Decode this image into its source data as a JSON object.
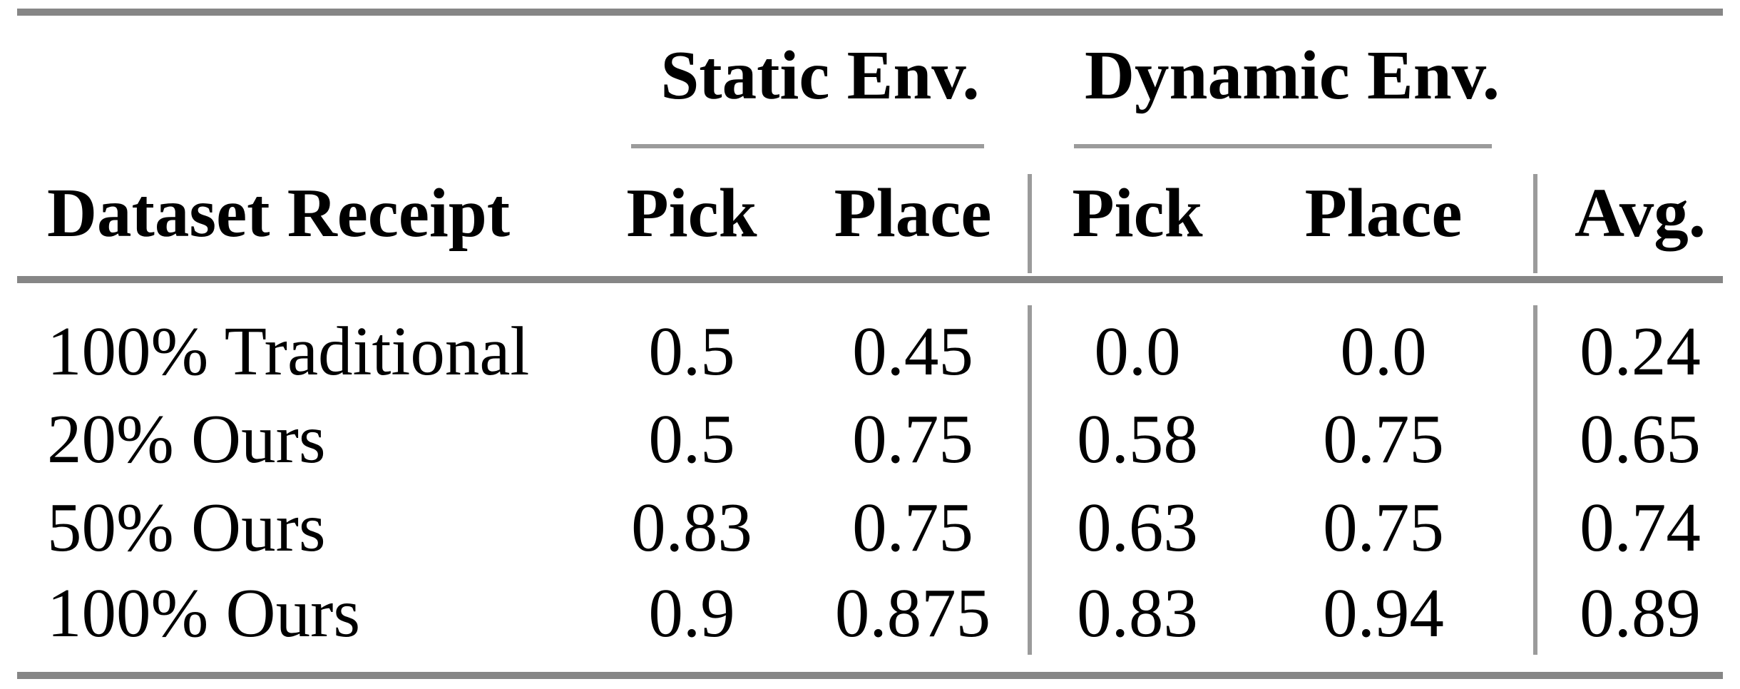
{
  "table": {
    "group_headers": [
      {
        "label": "Static Env."
      },
      {
        "label": "Dynamic Env."
      }
    ],
    "columns": {
      "row_header": "Dataset Receipt",
      "static_pick": "Pick",
      "static_place": "Place",
      "dynamic_pick": "Pick",
      "dynamic_place": "Place",
      "avg": "Avg."
    },
    "rows": [
      {
        "label": "100% Traditional",
        "static_pick": "0.5",
        "static_place": "0.45",
        "dynamic_pick": "0.0",
        "dynamic_place": "0.0",
        "avg": "0.24"
      },
      {
        "label": "20% Ours",
        "static_pick": "0.5",
        "static_place": "0.75",
        "dynamic_pick": "0.58",
        "dynamic_place": "0.75",
        "avg": "0.65"
      },
      {
        "label": "50% Ours",
        "static_pick": "0.83",
        "static_place": "0.75",
        "dynamic_pick": "0.63",
        "dynamic_place": "0.75",
        "avg": "0.74"
      },
      {
        "label": "100% Ours",
        "static_pick": "0.9",
        "static_place": "0.875",
        "dynamic_pick": "0.83",
        "dynamic_place": "0.94",
        "avg": "0.89"
      }
    ],
    "colors": {
      "thick_rule": "#868686",
      "thin_rule": "#9b9b9b",
      "text": "#000000",
      "background": "#ffffff"
    }
  },
  "chart_data": {
    "type": "table",
    "title": "",
    "column_groups": [
      "",
      "Static Env.",
      "Static Env.",
      "Dynamic Env.",
      "Dynamic Env.",
      ""
    ],
    "columns": [
      "Dataset Receipt",
      "Pick",
      "Place",
      "Pick",
      "Place",
      "Avg."
    ],
    "rows": [
      [
        "100% Traditional",
        0.5,
        0.45,
        0.0,
        0.0,
        0.24
      ],
      [
        "20% Ours",
        0.5,
        0.75,
        0.58,
        0.75,
        0.65
      ],
      [
        "50% Ours",
        0.83,
        0.75,
        0.63,
        0.75,
        0.74
      ],
      [
        "100% Ours",
        0.9,
        0.875,
        0.83,
        0.94,
        0.89
      ]
    ]
  }
}
